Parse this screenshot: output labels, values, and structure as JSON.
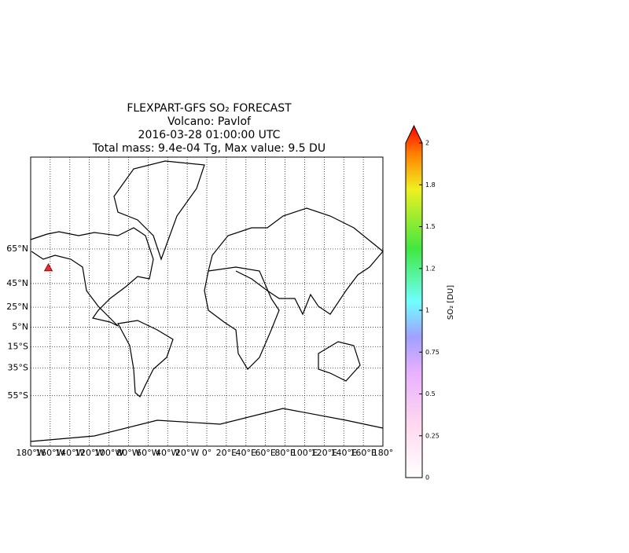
{
  "title_lines": [
    "FLEXPART-GFS SO₂  FORECAST",
    "Volcano: Pavlof",
    "2016-03-28  01:00:00 UTC",
    "Total mass: 9.4e-04 Tg, Max value:  9.5 DU"
  ],
  "map": {
    "projection": "mercator",
    "latlim": [
      -75.6,
      85.2
    ],
    "lonlim": [
      -180,
      180
    ],
    "lat_ticks": [
      {
        "value": 65,
        "label": "65°N"
      },
      {
        "value": 45,
        "label": "45°N"
      },
      {
        "value": 25,
        "label": "25°N"
      },
      {
        "value": 5,
        "label": "5°N"
      },
      {
        "value": -15,
        "label": "15°S"
      },
      {
        "value": -35,
        "label": "35°S"
      },
      {
        "value": -55,
        "label": "55°S"
      }
    ],
    "lon_ticks": [
      {
        "value": -180,
        "label": "180°W"
      },
      {
        "value": -160,
        "label": "160°W"
      },
      {
        "value": -140,
        "label": "140°W"
      },
      {
        "value": -120,
        "label": "120°W"
      },
      {
        "value": -100,
        "label": "100°W"
      },
      {
        "value": -80,
        "label": "80°W"
      },
      {
        "value": -60,
        "label": "60°W"
      },
      {
        "value": -40,
        "label": "40°W"
      },
      {
        "value": -20,
        "label": "20°W"
      },
      {
        "value": 0,
        "label": "0°"
      },
      {
        "value": 20,
        "label": "20°E"
      },
      {
        "value": 40,
        "label": "40°E"
      },
      {
        "value": 60,
        "label": "60°E"
      },
      {
        "value": 80,
        "label": "80°E"
      },
      {
        "value": 100,
        "label": "100°E"
      },
      {
        "value": 120,
        "label": "120°E"
      },
      {
        "value": 140,
        "label": "140°E"
      },
      {
        "value": 160,
        "label": "160°E"
      },
      {
        "value": 180,
        "label": "180°"
      }
    ],
    "volcano": {
      "lat": 55.4,
      "lon": -161.9,
      "color": "#e03030"
    }
  },
  "colorbar": {
    "label": "SO₂ [DU]",
    "lim": [
      0,
      2
    ],
    "ticks": [
      0,
      0.25,
      0.5,
      0.75,
      1,
      {
        "value": 1.25,
        "label": "1.2"
      },
      1.5,
      {
        "value": 1.75,
        "label": "1.8"
      },
      2
    ]
  }
}
